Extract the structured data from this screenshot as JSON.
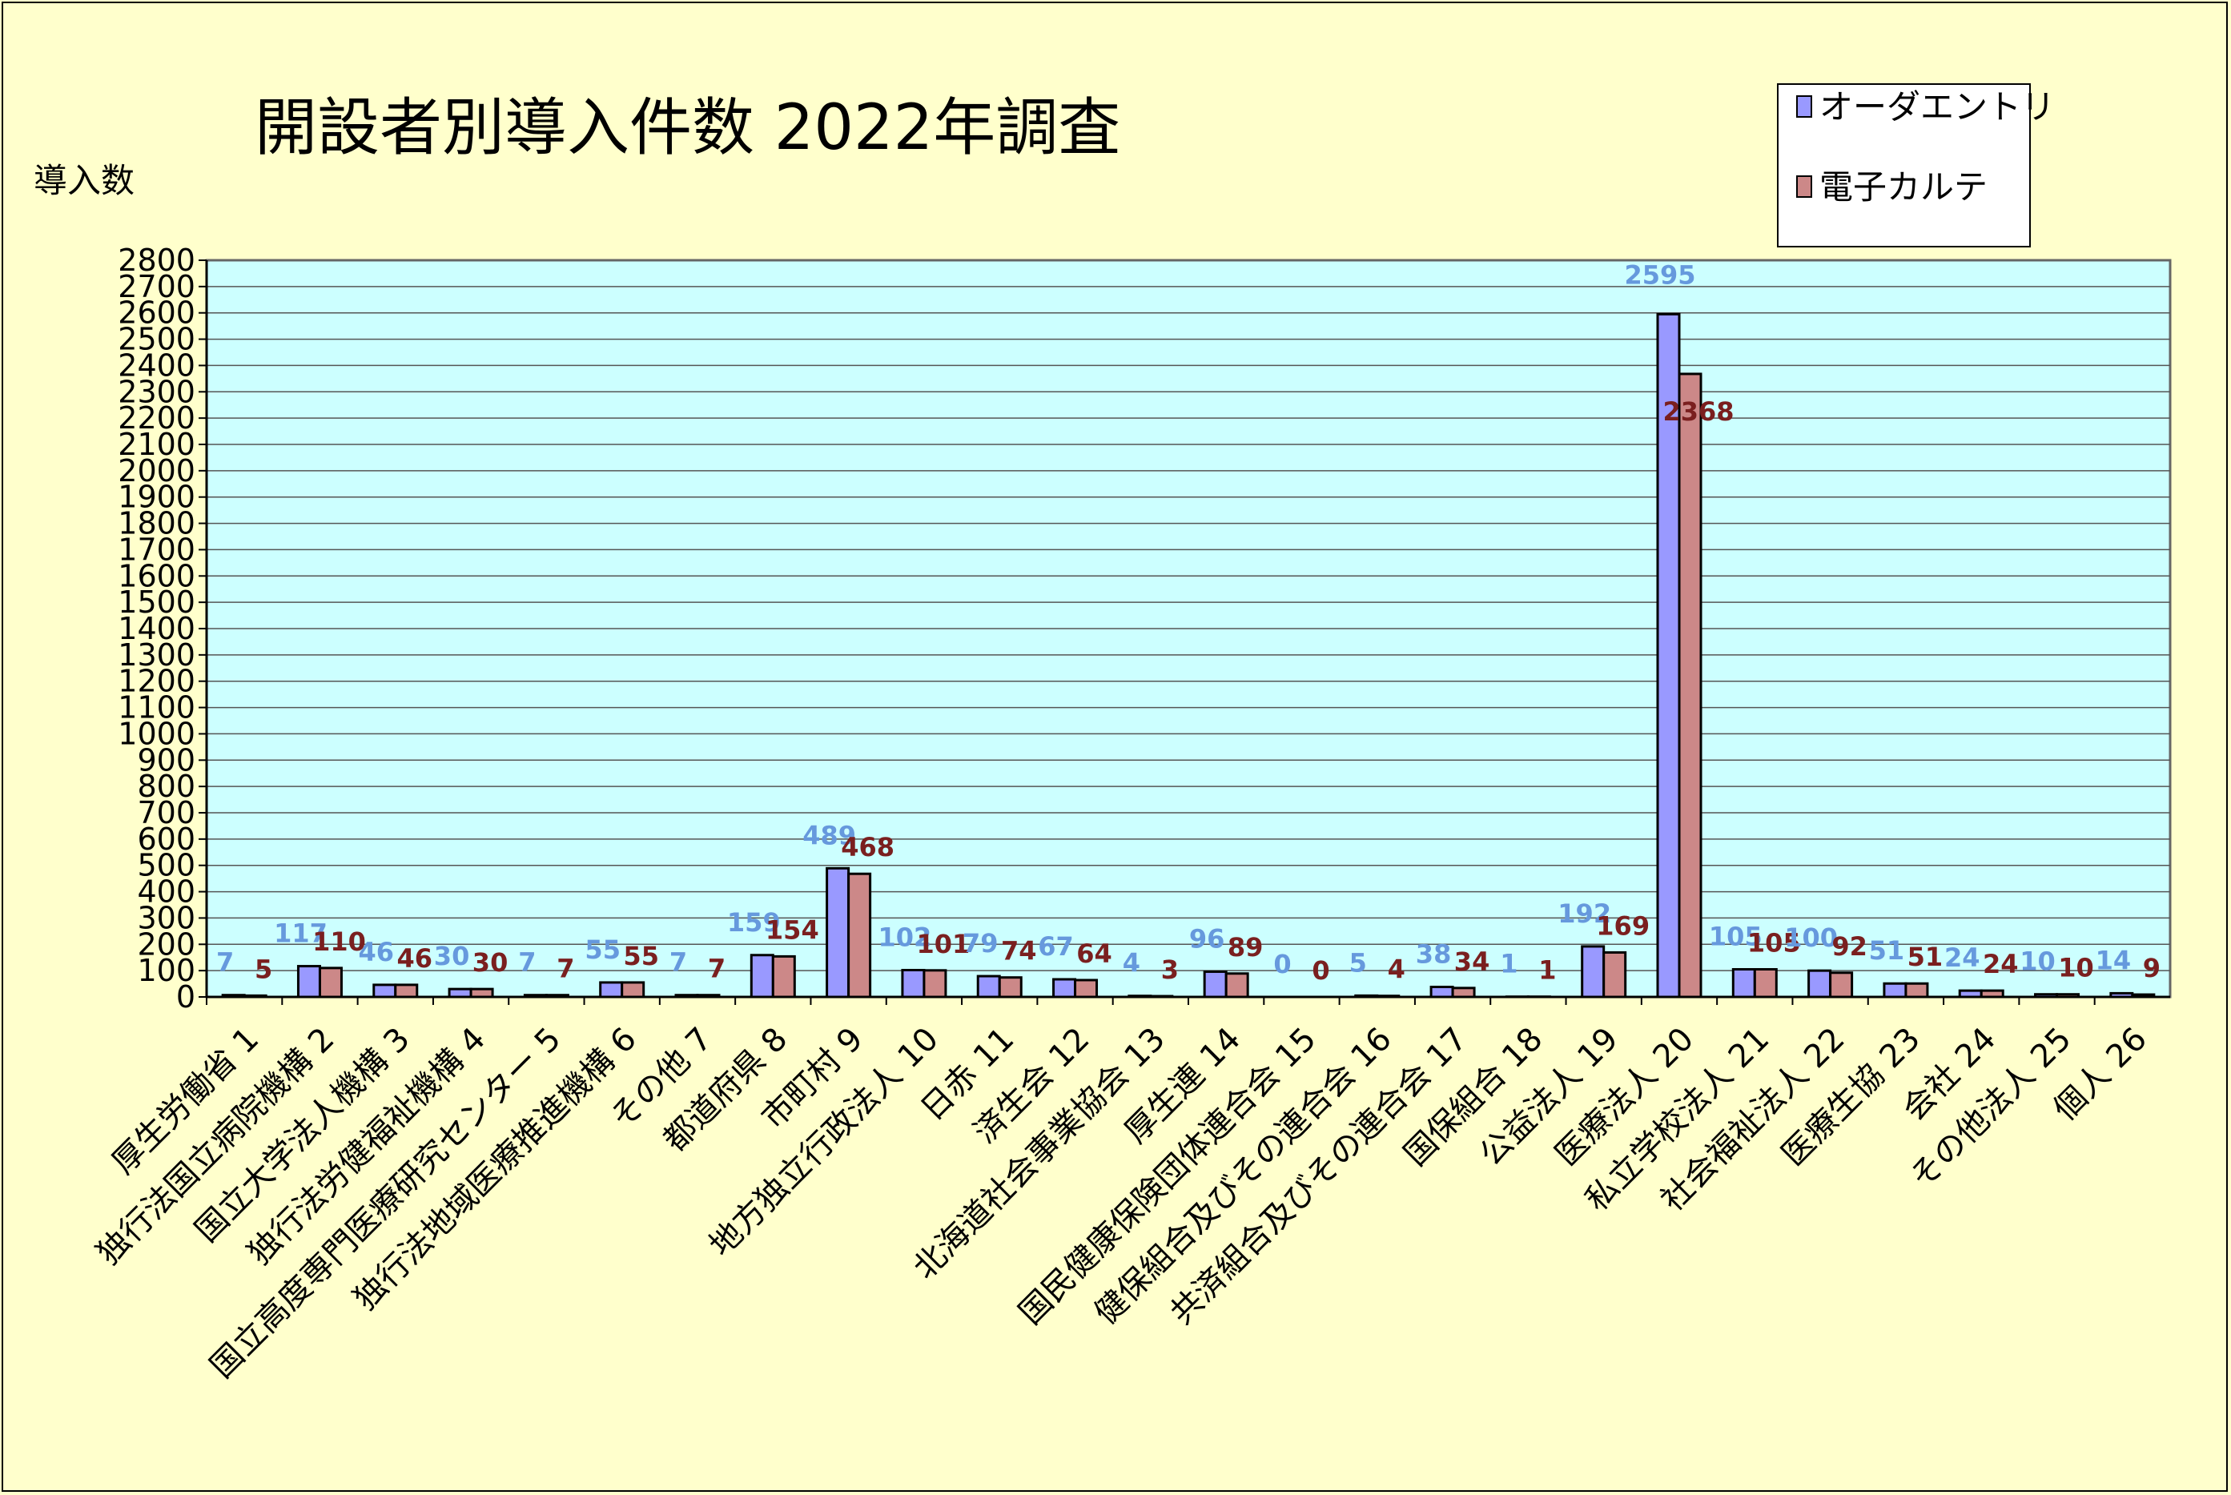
{
  "chart_data": {
    "type": "bar",
    "title": "開設者別導入件数  2022年調査",
    "ylabel": "導入数",
    "ylim": [
      0,
      2800
    ],
    "ytick_step": 100,
    "grid": true,
    "legend_position": "top-right",
    "categories": [
      "厚生労働省  1",
      "独行法国立病院機構  2",
      "国立大学法人機構  3",
      "独行法労健福祉機構  4",
      "国立高度専門医療研究センター  5",
      "独行法地域医療推進機構  6",
      "その他  7",
      "都道府県  8",
      "市町村  9",
      "地方独立行政法人  10",
      "日赤  11",
      "済生会  12",
      "北海道社会事業協会  13",
      "厚生連  14",
      "国民健康保険団体連合会  15",
      "健保組合及びその連合会  16",
      "共済組合及びその連合会  17",
      "国保組合  18",
      "公益法人  19",
      "医療法人 20",
      "私立学校法人  21",
      "社会福祉法人  22",
      "医療生協  23",
      "会社  24",
      "その他法人  25",
      "個人  26"
    ],
    "series": [
      {
        "name": "オーダエントリ",
        "color": "#9999FF",
        "label_color": "#6699DD",
        "values": [
          7,
          117,
          46,
          30,
          7,
          55,
          7,
          159,
          489,
          102,
          79,
          67,
          4,
          96,
          0,
          5,
          38,
          1,
          192,
          2595,
          105,
          100,
          51,
          24,
          10,
          14
        ]
      },
      {
        "name": "電子カルテ",
        "color": "#CC8888",
        "label_color": "#7A1F1F",
        "values": [
          5,
          110,
          46,
          30,
          7,
          55,
          7,
          154,
          468,
          101,
          74,
          64,
          3,
          89,
          0,
          4,
          34,
          1,
          169,
          2368,
          105,
          92,
          51,
          24,
          10,
          9
        ]
      }
    ],
    "plot_background": "#CCFFFF",
    "page_background": "#FFFFCC"
  }
}
